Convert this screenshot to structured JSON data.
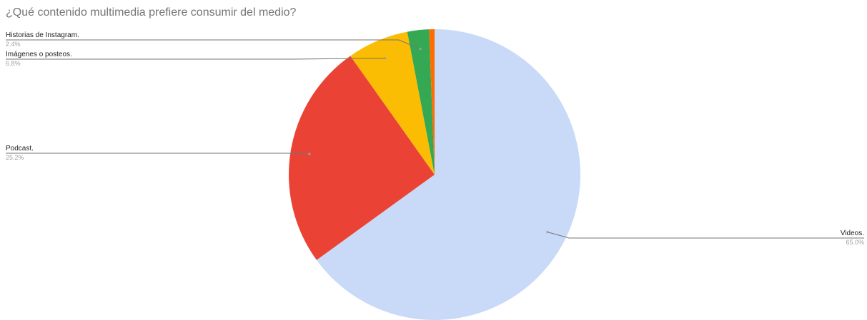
{
  "chart_data": {
    "type": "pie",
    "title": "¿Qué contenido multimedia prefiere consumir del medio?",
    "slices": [
      {
        "label": "Videos.",
        "value": 65.0,
        "pct_label": "65.0%",
        "color": "#c9daf8"
      },
      {
        "label": "Podcast.",
        "value": 25.2,
        "pct_label": "25.2%",
        "color": "#ea4335"
      },
      {
        "label": "Imágenes o posteos.",
        "value": 6.8,
        "pct_label": "6.8%",
        "color": "#fbbc04"
      },
      {
        "label": "Historias de Instagram.",
        "value": 2.4,
        "pct_label": "2.4%",
        "color": "#34a853"
      },
      {
        "label": "",
        "value": 0.6,
        "pct_label": "",
        "color": "#ff6d01"
      }
    ]
  }
}
